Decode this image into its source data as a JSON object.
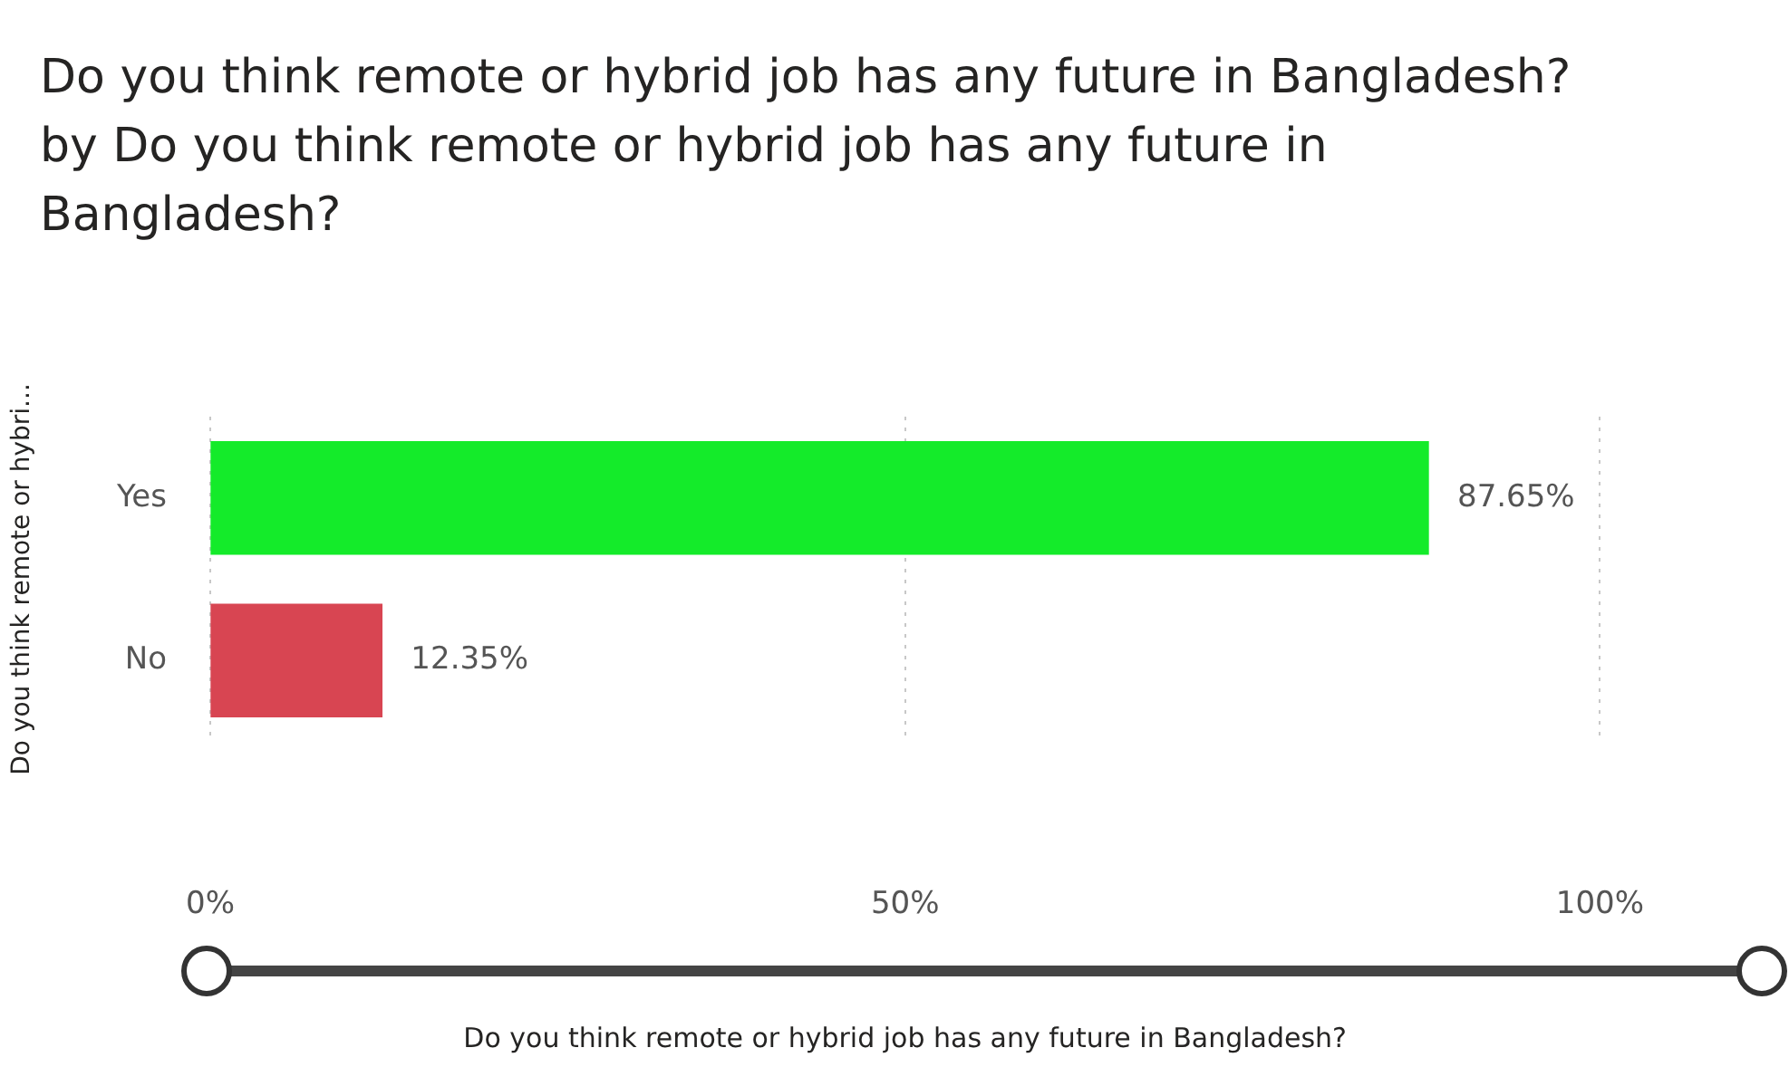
{
  "chart_data": {
    "type": "bar",
    "orientation": "horizontal",
    "title": "Do you think remote or hybrid job has any future in Bangladesh? by Do you think remote or hybrid job has any future in Bangladesh?",
    "ylabel": "Do you think remote or hybri...",
    "xlabel": "Do you think remote or hybrid job has any future in Bangladesh?",
    "categories": [
      "Yes",
      "No"
    ],
    "values": [
      87.65,
      12.35
    ],
    "colors": [
      "#14eb2a",
      "#d84552"
    ],
    "value_labels": [
      "87.65%",
      "12.35%"
    ],
    "xlim": [
      0,
      100
    ],
    "xticks": [
      {
        "value": 0,
        "label": "0%"
      },
      {
        "value": 50,
        "label": "50%"
      },
      {
        "value": 100,
        "label": "100%"
      }
    ],
    "grid": "x",
    "legend": false
  }
}
